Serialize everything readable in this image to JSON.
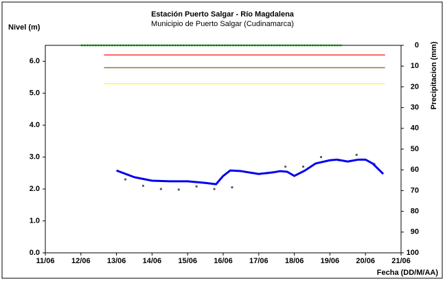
{
  "chart_data": {
    "type": "line",
    "title": "Estación Puerto Salgar - Río Magdalena",
    "subtitle": "Municipio de Puerto Salgar (Cudinamarca)",
    "ylabel": "Nivel (m)",
    "y2label": "Precipitacion (mm)",
    "xlabel": "Fecha (DD/M/AA)",
    "xlim": [
      11,
      21
    ],
    "xticks": [
      {
        "value": 11,
        "label": "11/06"
      },
      {
        "value": 12,
        "label": "12/06"
      },
      {
        "value": 13,
        "label": "13/06"
      },
      {
        "value": 14,
        "label": "14/06"
      },
      {
        "value": 15,
        "label": "15/06"
      },
      {
        "value": 16,
        "label": "16/06"
      },
      {
        "value": 17,
        "label": "17/06"
      },
      {
        "value": 18,
        "label": "18/06"
      },
      {
        "value": 19,
        "label": "19/06"
      },
      {
        "value": 20,
        "label": "20/06"
      },
      {
        "value": 21,
        "label": "21/06"
      }
    ],
    "ylim": [
      0,
      6.5
    ],
    "yticks": [
      {
        "value": 0,
        "label": "0.0"
      },
      {
        "value": 1,
        "label": "1.0"
      },
      {
        "value": 2,
        "label": "2.0"
      },
      {
        "value": 3,
        "label": "3.0"
      },
      {
        "value": 4,
        "label": "4.0"
      },
      {
        "value": 5,
        "label": "5.0"
      },
      {
        "value": 6,
        "label": "6.0"
      }
    ],
    "y2lim": [
      100,
      0
    ],
    "y2ticks": [
      0,
      10,
      20,
      30,
      40,
      50,
      60,
      70,
      80,
      90,
      100
    ],
    "series": [
      {
        "color": "#008000",
        "style": "dashed",
        "x": [
          12,
          19.35
        ],
        "values": [
          6.5,
          6.5
        ]
      },
      {
        "color": "#ff3333",
        "style": "line",
        "x": [
          12.65,
          20.55
        ],
        "values": [
          6.2,
          6.2
        ]
      },
      {
        "color": "#a0703a",
        "style": "line",
        "x": [
          12.65,
          20.55
        ],
        "values": [
          5.8,
          5.8
        ]
      },
      {
        "color": "#ffff33",
        "style": "line",
        "x": [
          12.65,
          20.55
        ],
        "values": [
          5.3,
          5.3
        ]
      },
      {
        "color": "#555555",
        "style": "dots",
        "x": [
          13.25,
          13.75,
          14.25,
          14.75,
          15.25,
          15.75,
          16.25,
          17.25,
          17.75,
          18.25,
          18.75,
          19.25,
          19.75,
          20.25
        ],
        "values": [
          2.3,
          2.1,
          2.0,
          1.98,
          2.08,
          2.0,
          2.05,
          2.5,
          2.7,
          2.7,
          3.0,
          2.9,
          3.07,
          2.78
        ]
      },
      {
        "color": "#0000ee",
        "style": "thick",
        "x": [
          13.0,
          13.5,
          14.0,
          14.5,
          15.0,
          15.5,
          15.8,
          16.0,
          16.2,
          16.5,
          17.0,
          17.4,
          17.6,
          17.8,
          18.0,
          18.3,
          18.6,
          19.0,
          19.2,
          19.5,
          19.8,
          20.0,
          20.2,
          20.5
        ],
        "values": [
          2.58,
          2.37,
          2.26,
          2.24,
          2.24,
          2.19,
          2.15,
          2.41,
          2.58,
          2.56,
          2.47,
          2.52,
          2.56,
          2.54,
          2.41,
          2.58,
          2.8,
          2.9,
          2.92,
          2.86,
          2.92,
          2.92,
          2.8,
          2.47
        ]
      }
    ]
  }
}
